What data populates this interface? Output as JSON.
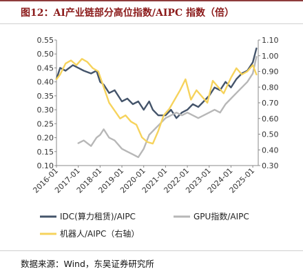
{
  "figure": {
    "title": "图12：AI产业链部分高位指数/AIPC 指数（倍）",
    "source": "数据来源：Wind，东吴证券研究所"
  },
  "chart_data": {
    "type": "line",
    "x_ticks": [
      "2016-01",
      "2017-01",
      "2018-01",
      "2019-01",
      "2020-01",
      "2021-01",
      "2022-01",
      "2023-01",
      "2024-01",
      "2025-01"
    ],
    "y_left": {
      "ticks": [
        "0.10",
        "0.15",
        "0.20",
        "0.25",
        "0.30",
        "0.35",
        "0.40",
        "0.45",
        "0.50",
        "0.55"
      ],
      "ylim": [
        0.1,
        0.55
      ]
    },
    "y_right": {
      "ticks": [
        "0.30",
        "0.40",
        "0.50",
        "0.60",
        "0.70",
        "0.80",
        "0.90",
        "1.00",
        "1.10"
      ],
      "ylim": [
        0.3,
        1.1
      ]
    },
    "grid": false,
    "legend_position": "bottom",
    "series": [
      {
        "name": "IDC(算力租赁)/AIPC",
        "axis": "left",
        "color": "#44546a",
        "points": [
          [
            "2016-01",
            0.41
          ],
          [
            "2016-03",
            0.45
          ],
          [
            "2016-06",
            0.44
          ],
          [
            "2016-10",
            0.46
          ],
          [
            "2017-01",
            0.45
          ],
          [
            "2017-04",
            0.44
          ],
          [
            "2017-08",
            0.43
          ],
          [
            "2017-11",
            0.44
          ],
          [
            "2018-01",
            0.4
          ],
          [
            "2018-03",
            0.39
          ],
          [
            "2018-06",
            0.36
          ],
          [
            "2018-09",
            0.37
          ],
          [
            "2019-01",
            0.33
          ],
          [
            "2019-04",
            0.34
          ],
          [
            "2019-07",
            0.32
          ],
          [
            "2019-10",
            0.33
          ],
          [
            "2020-01",
            0.3
          ],
          [
            "2020-04",
            0.33
          ],
          [
            "2020-06",
            0.3
          ],
          [
            "2020-09",
            0.28
          ],
          [
            "2021-01",
            0.28
          ],
          [
            "2021-04",
            0.3
          ],
          [
            "2021-07",
            0.27
          ],
          [
            "2021-10",
            0.29
          ],
          [
            "2022-01",
            0.3
          ],
          [
            "2022-04",
            0.32
          ],
          [
            "2022-07",
            0.31
          ],
          [
            "2022-10",
            0.33
          ],
          [
            "2023-01",
            0.35
          ],
          [
            "2023-04",
            0.38
          ],
          [
            "2023-07",
            0.37
          ],
          [
            "2023-10",
            0.4
          ],
          [
            "2024-01",
            0.38
          ],
          [
            "2024-04",
            0.41
          ],
          [
            "2024-07",
            0.43
          ],
          [
            "2024-10",
            0.44
          ],
          [
            "2025-01",
            0.47
          ],
          [
            "2025-03",
            0.52
          ]
        ]
      },
      {
        "name": "GPU指数/AIPC",
        "axis": "left",
        "color": "#b7b7b7",
        "points": [
          [
            "2017-01",
            0.18
          ],
          [
            "2017-04",
            0.19
          ],
          [
            "2017-08",
            0.17
          ],
          [
            "2017-11",
            0.2
          ],
          [
            "2018-01",
            0.21
          ],
          [
            "2018-03",
            0.23
          ],
          [
            "2018-06",
            0.2
          ],
          [
            "2018-09",
            0.19
          ],
          [
            "2019-01",
            0.16
          ],
          [
            "2019-04",
            0.15
          ],
          [
            "2019-07",
            0.14
          ],
          [
            "2019-10",
            0.13
          ],
          [
            "2020-01",
            0.16
          ],
          [
            "2020-04",
            0.21
          ],
          [
            "2020-07",
            0.23
          ],
          [
            "2020-10",
            0.25
          ],
          [
            "2021-01",
            0.27
          ],
          [
            "2021-04",
            0.28
          ],
          [
            "2021-07",
            0.29
          ],
          [
            "2021-10",
            0.28
          ],
          [
            "2022-01",
            0.29
          ],
          [
            "2022-04",
            0.28
          ],
          [
            "2022-07",
            0.27
          ],
          [
            "2022-10",
            0.28
          ],
          [
            "2023-01",
            0.29
          ],
          [
            "2023-04",
            0.3
          ],
          [
            "2023-07",
            0.29
          ],
          [
            "2023-10",
            0.32
          ],
          [
            "2024-01",
            0.34
          ],
          [
            "2024-04",
            0.36
          ],
          [
            "2024-07",
            0.38
          ],
          [
            "2024-10",
            0.4
          ],
          [
            "2025-01",
            0.43
          ],
          [
            "2025-03",
            0.49
          ]
        ]
      },
      {
        "name": "机器人/AIPC（右轴）",
        "axis": "right",
        "color": "#f6d35c",
        "points": [
          [
            "2016-01",
            0.85
          ],
          [
            "2016-03",
            0.88
          ],
          [
            "2016-06",
            0.95
          ],
          [
            "2016-09",
            0.97
          ],
          [
            "2016-12",
            0.94
          ],
          [
            "2017-03",
            0.98
          ],
          [
            "2017-06",
            0.96
          ],
          [
            "2017-09",
            0.92
          ],
          [
            "2017-12",
            0.9
          ],
          [
            "2018-03",
            0.8
          ],
          [
            "2018-06",
            0.7
          ],
          [
            "2018-09",
            0.65
          ],
          [
            "2018-12",
            0.6
          ],
          [
            "2019-03",
            0.62
          ],
          [
            "2019-06",
            0.58
          ],
          [
            "2019-09",
            0.56
          ],
          [
            "2019-12",
            0.48
          ],
          [
            "2020-03",
            0.45
          ],
          [
            "2020-06",
            0.44
          ],
          [
            "2020-09",
            0.52
          ],
          [
            "2020-12",
            0.62
          ],
          [
            "2021-03",
            0.66
          ],
          [
            "2021-06",
            0.72
          ],
          [
            "2021-09",
            0.78
          ],
          [
            "2021-12",
            0.85
          ],
          [
            "2022-03",
            0.72
          ],
          [
            "2022-06",
            0.78
          ],
          [
            "2022-09",
            0.74
          ],
          [
            "2022-12",
            0.7
          ],
          [
            "2023-03",
            0.84
          ],
          [
            "2023-06",
            0.8
          ],
          [
            "2023-09",
            0.76
          ],
          [
            "2024-01",
            0.86
          ],
          [
            "2024-04",
            0.92
          ],
          [
            "2024-07",
            0.88
          ],
          [
            "2024-10",
            0.9
          ],
          [
            "2025-01",
            0.94
          ],
          [
            "2025-03",
            0.88
          ]
        ]
      }
    ]
  }
}
